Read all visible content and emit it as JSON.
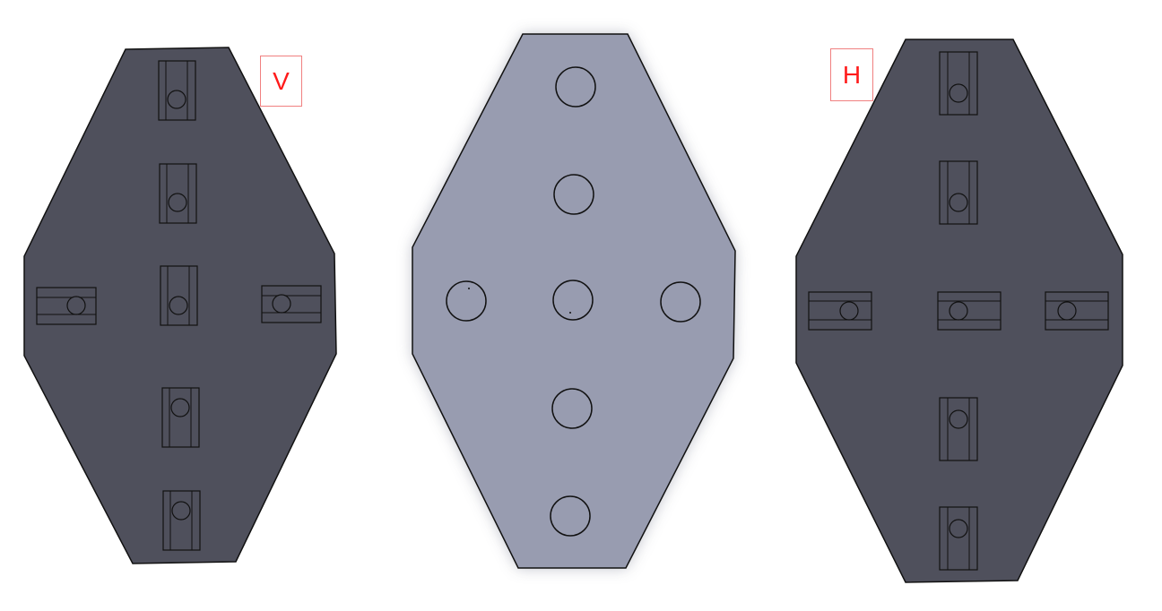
{
  "plates": [
    {
      "id": "plate-v",
      "label": "V",
      "color": "#4f505c",
      "slot_orientation": [
        "v",
        "v",
        "v",
        "h",
        "h",
        "v",
        "v"
      ]
    },
    {
      "id": "plate-center",
      "label": "",
      "color": "#989cb0",
      "holes": 7
    },
    {
      "id": "plate-h",
      "label": "H",
      "color": "#4f505c",
      "slot_orientation": [
        "v",
        "v",
        "h",
        "h",
        "h",
        "v",
        "v"
      ]
    }
  ],
  "colors": {
    "dark_plate": "#4f505c",
    "light_plate": "#989cb0",
    "outline": "#1a1a1a",
    "label_text": "#ff1a1a",
    "label_border": "#f08080"
  },
  "labels": {
    "v": "V",
    "h": "H"
  }
}
